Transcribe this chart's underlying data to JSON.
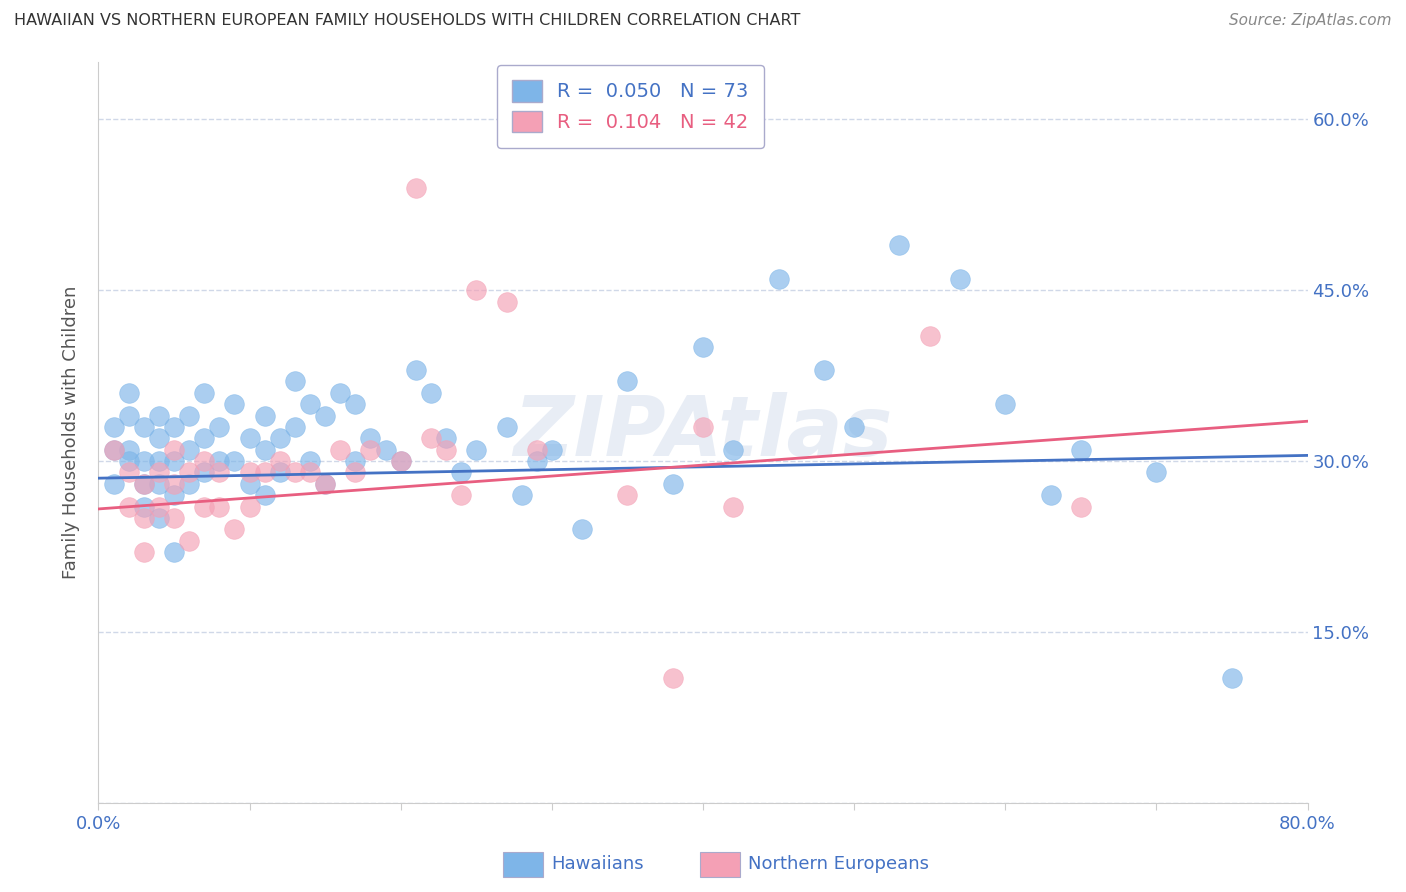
{
  "title": "HAWAIIAN VS NORTHERN EUROPEAN FAMILY HOUSEHOLDS WITH CHILDREN CORRELATION CHART",
  "source": "Source: ZipAtlas.com",
  "ylabel_label": "Family Households with Children",
  "xlim": [
    0.0,
    0.8
  ],
  "ylim": [
    0.0,
    0.65
  ],
  "yticks": [
    0.0,
    0.15,
    0.3,
    0.45,
    0.6
  ],
  "ytick_labels": [
    "",
    "15.0%",
    "30.0%",
    "45.0%",
    "60.0%"
  ],
  "xtick_vals": [
    0.0,
    0.1,
    0.2,
    0.3,
    0.4,
    0.5,
    0.6,
    0.7,
    0.8
  ],
  "xtick_labels": [
    "0.0%",
    "",
    "",
    "",
    "",
    "",
    "",
    "",
    "80.0%"
  ],
  "hawaiian_color": "#7eb5e8",
  "northern_color": "#f4a0b5",
  "trend_hawaiian_color": "#4472c4",
  "trend_northern_color": "#e85e80",
  "legend_r_hawaiian": "R =  0.050",
  "legend_n_hawaiian": "N = 73",
  "legend_r_northern": "R =  0.104",
  "legend_n_northern": "N = 42",
  "watermark": "ZIPAtlas",
  "hawaiian_x": [
    0.01,
    0.01,
    0.01,
    0.02,
    0.02,
    0.02,
    0.02,
    0.03,
    0.03,
    0.03,
    0.03,
    0.04,
    0.04,
    0.04,
    0.04,
    0.04,
    0.05,
    0.05,
    0.05,
    0.05,
    0.06,
    0.06,
    0.06,
    0.07,
    0.07,
    0.07,
    0.08,
    0.08,
    0.09,
    0.09,
    0.1,
    0.1,
    0.11,
    0.11,
    0.11,
    0.12,
    0.12,
    0.13,
    0.13,
    0.14,
    0.14,
    0.15,
    0.15,
    0.16,
    0.17,
    0.17,
    0.18,
    0.19,
    0.2,
    0.21,
    0.22,
    0.23,
    0.24,
    0.25,
    0.27,
    0.28,
    0.29,
    0.3,
    0.32,
    0.35,
    0.38,
    0.4,
    0.42,
    0.45,
    0.48,
    0.5,
    0.53,
    0.57,
    0.6,
    0.63,
    0.65,
    0.7,
    0.75
  ],
  "hawaiian_y": [
    0.31,
    0.28,
    0.33,
    0.34,
    0.31,
    0.36,
    0.3,
    0.33,
    0.3,
    0.28,
    0.26,
    0.32,
    0.34,
    0.3,
    0.28,
    0.25,
    0.33,
    0.3,
    0.27,
    0.22,
    0.34,
    0.31,
    0.28,
    0.36,
    0.32,
    0.29,
    0.33,
    0.3,
    0.35,
    0.3,
    0.32,
    0.28,
    0.34,
    0.31,
    0.27,
    0.32,
    0.29,
    0.37,
    0.33,
    0.35,
    0.3,
    0.34,
    0.28,
    0.36,
    0.35,
    0.3,
    0.32,
    0.31,
    0.3,
    0.38,
    0.36,
    0.32,
    0.29,
    0.31,
    0.33,
    0.27,
    0.3,
    0.31,
    0.24,
    0.37,
    0.28,
    0.4,
    0.31,
    0.46,
    0.38,
    0.33,
    0.49,
    0.46,
    0.35,
    0.27,
    0.31,
    0.29,
    0.11
  ],
  "northern_x": [
    0.01,
    0.02,
    0.02,
    0.03,
    0.03,
    0.03,
    0.04,
    0.04,
    0.05,
    0.05,
    0.05,
    0.06,
    0.06,
    0.07,
    0.07,
    0.08,
    0.08,
    0.09,
    0.1,
    0.1,
    0.11,
    0.12,
    0.13,
    0.14,
    0.15,
    0.16,
    0.17,
    0.18,
    0.2,
    0.21,
    0.22,
    0.23,
    0.24,
    0.25,
    0.27,
    0.29,
    0.35,
    0.38,
    0.4,
    0.42,
    0.55,
    0.65
  ],
  "northern_y": [
    0.31,
    0.29,
    0.26,
    0.28,
    0.25,
    0.22,
    0.29,
    0.26,
    0.28,
    0.25,
    0.31,
    0.29,
    0.23,
    0.3,
    0.26,
    0.29,
    0.26,
    0.24,
    0.29,
    0.26,
    0.29,
    0.3,
    0.29,
    0.29,
    0.28,
    0.31,
    0.29,
    0.31,
    0.3,
    0.54,
    0.32,
    0.31,
    0.27,
    0.45,
    0.44,
    0.31,
    0.27,
    0.11,
    0.33,
    0.26,
    0.41,
    0.26
  ],
  "trend_hawaiian_x0": 0.0,
  "trend_hawaiian_x1": 0.8,
  "trend_hawaiian_y0": 0.285,
  "trend_hawaiian_y1": 0.305,
  "trend_northern_x0": 0.0,
  "trend_northern_x1": 0.8,
  "trend_northern_y0": 0.258,
  "trend_northern_y1": 0.335,
  "background_color": "#ffffff",
  "grid_color": "#d0d8e8",
  "title_color": "#333333",
  "tick_label_color": "#4472c4"
}
